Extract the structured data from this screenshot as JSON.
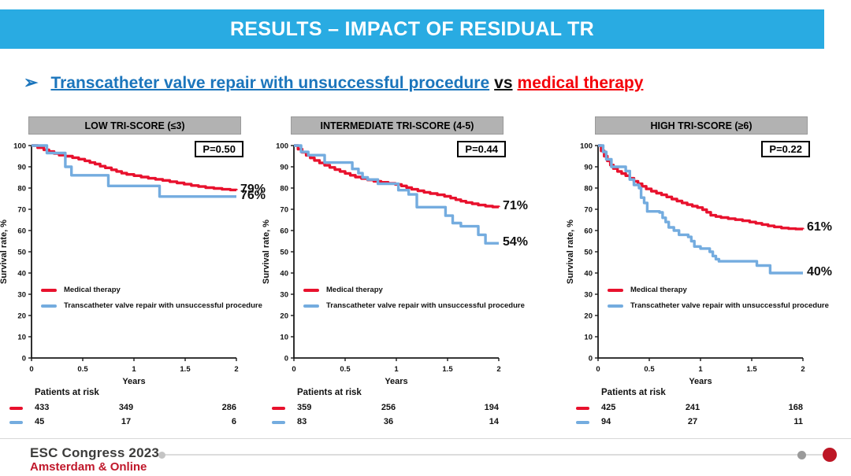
{
  "header": {
    "title": "RESULTS – IMPACT OF RESIDUAL TR"
  },
  "bullet": {
    "arrow": "➢",
    "blue_text": "Transcatheter valve repair with unsuccessful procedure",
    "connector": "vs",
    "red_text": "medical therapy"
  },
  "legend": {
    "medical": "Medical therapy",
    "repair": "Transcatheter valve repair with unsuccessful procedure"
  },
  "axes": {
    "ylabel": "Survival rate, %",
    "xlabel": "Years",
    "ylim": [
      0,
      100
    ],
    "xlim": [
      0,
      2
    ],
    "yticks": [
      0,
      10,
      20,
      30,
      40,
      50,
      60,
      70,
      80,
      90,
      100
    ],
    "xticks": [
      0,
      0.5,
      1,
      1.5,
      2
    ]
  },
  "risk_label": "Patients at risk",
  "colors": {
    "medical": "#e8112d",
    "repair": "#74acdf",
    "header_bg": "#29abe2",
    "accent_red": "#c0182b"
  },
  "chart_data": [
    {
      "type": "line",
      "title": "LOW TRI-SCORE (≤3)",
      "pvalue": "P=0.50",
      "end_labels": [
        "79%",
        "76%"
      ],
      "series": [
        {
          "name": "Medical therapy",
          "key": "medical",
          "points": [
            [
              0,
              100
            ],
            [
              0.06,
              99
            ],
            [
              0.12,
              98
            ],
            [
              0.17,
              97.2
            ],
            [
              0.22,
              96.3
            ],
            [
              0.27,
              95.5
            ],
            [
              0.33,
              95
            ],
            [
              0.4,
              94.3
            ],
            [
              0.46,
              93.6
            ],
            [
              0.52,
              92.8
            ],
            [
              0.57,
              92
            ],
            [
              0.62,
              91.3
            ],
            [
              0.67,
              90.3
            ],
            [
              0.72,
              89.5
            ],
            [
              0.78,
              88.6
            ],
            [
              0.83,
              87.8
            ],
            [
              0.88,
              87
            ],
            [
              0.93,
              86.4
            ],
            [
              1.0,
              85.8
            ],
            [
              1.07,
              85.2
            ],
            [
              1.14,
              84.6
            ],
            [
              1.21,
              84.1
            ],
            [
              1.28,
              83.6
            ],
            [
              1.35,
              83
            ],
            [
              1.42,
              82.4
            ],
            [
              1.49,
              81.8
            ],
            [
              1.56,
              81.2
            ],
            [
              1.63,
              80.7
            ],
            [
              1.7,
              80.2
            ],
            [
              1.78,
              79.8
            ],
            [
              1.86,
              79.4
            ],
            [
              1.94,
              79.1
            ],
            [
              2,
              79
            ]
          ]
        },
        {
          "name": "Transcatheter valve repair with unsuccessful procedure",
          "key": "repair",
          "points": [
            [
              0,
              100
            ],
            [
              0.15,
              96.5
            ],
            [
              0.33,
              90
            ],
            [
              0.39,
              86
            ],
            [
              0.75,
              81
            ],
            [
              1.25,
              76
            ],
            [
              2,
              76
            ]
          ]
        }
      ],
      "risk": [
        [
          "433",
          "349",
          "286"
        ],
        [
          "45",
          "17",
          "6"
        ]
      ]
    },
    {
      "type": "line",
      "title": "INTERMEDIATE TRI-SCORE (4-5)",
      "pvalue": "P=0.44",
      "end_labels": [
        "71%",
        "54%"
      ],
      "series": [
        {
          "name": "Medical therapy",
          "key": "medical",
          "points": [
            [
              0,
              100
            ],
            [
              0.04,
              98.3
            ],
            [
              0.08,
              96.8
            ],
            [
              0.12,
              95.4
            ],
            [
              0.16,
              94.2
            ],
            [
              0.2,
              93
            ],
            [
              0.25,
              91.8
            ],
            [
              0.3,
              90.7
            ],
            [
              0.35,
              89.7
            ],
            [
              0.4,
              88.7
            ],
            [
              0.45,
              87.8
            ],
            [
              0.5,
              86.9
            ],
            [
              0.55,
              86
            ],
            [
              0.6,
              85.2
            ],
            [
              0.66,
              84.5
            ],
            [
              0.72,
              83.8
            ],
            [
              0.78,
              83.2
            ],
            [
              0.85,
              82.7
            ],
            [
              0.92,
              82.2
            ],
            [
              0.99,
              81.7
            ],
            [
              1.05,
              81
            ],
            [
              1.1,
              80.2
            ],
            [
              1.15,
              79.4
            ],
            [
              1.21,
              78.7
            ],
            [
              1.27,
              78
            ],
            [
              1.33,
              77.4
            ],
            [
              1.4,
              76.8
            ],
            [
              1.47,
              76.1
            ],
            [
              1.53,
              75.3
            ],
            [
              1.58,
              74.5
            ],
            [
              1.63,
              73.8
            ],
            [
              1.68,
              73.2
            ],
            [
              1.74,
              72.6
            ],
            [
              1.8,
              72
            ],
            [
              1.87,
              71.5
            ],
            [
              1.94,
              71.1
            ],
            [
              2,
              71
            ]
          ]
        },
        {
          "name": "Transcatheter valve repair with unsuccessful procedure",
          "key": "repair",
          "points": [
            [
              0,
              100
            ],
            [
              0.07,
              97
            ],
            [
              0.14,
              95.5
            ],
            [
              0.3,
              92
            ],
            [
              0.57,
              89
            ],
            [
              0.63,
              87
            ],
            [
              0.67,
              85
            ],
            [
              0.72,
              84
            ],
            [
              0.82,
              82
            ],
            [
              1.02,
              79
            ],
            [
              1.12,
              77
            ],
            [
              1.2,
              71
            ],
            [
              1.48,
              67
            ],
            [
              1.55,
              63.5
            ],
            [
              1.63,
              62
            ],
            [
              1.8,
              58
            ],
            [
              1.87,
              54
            ],
            [
              2,
              54
            ]
          ]
        }
      ],
      "risk": [
        [
          "359",
          "256",
          "194"
        ],
        [
          "83",
          "36",
          "14"
        ]
      ]
    },
    {
      "type": "line",
      "title": "HIGH TRI-SCORE (≥6)",
      "pvalue": "P=0.22",
      "end_labels": [
        "61%",
        "40%"
      ],
      "series": [
        {
          "name": "Medical therapy",
          "key": "medical",
          "points": [
            [
              0,
              100
            ],
            [
              0.03,
              97.5
            ],
            [
              0.06,
              95
            ],
            [
              0.09,
              92.8
            ],
            [
              0.12,
              90.8
            ],
            [
              0.15,
              89.2
            ],
            [
              0.19,
              87.8
            ],
            [
              0.23,
              86.8
            ],
            [
              0.27,
              85.8
            ],
            [
              0.31,
              84.6
            ],
            [
              0.35,
              83.2
            ],
            [
              0.39,
              82
            ],
            [
              0.43,
              80.8
            ],
            [
              0.47,
              79.6
            ],
            [
              0.52,
              78.5
            ],
            [
              0.57,
              77.6
            ],
            [
              0.62,
              76.8
            ],
            [
              0.67,
              75.8
            ],
            [
              0.72,
              74.8
            ],
            [
              0.77,
              73.9
            ],
            [
              0.82,
              73
            ],
            [
              0.87,
              72.2
            ],
            [
              0.92,
              71.5
            ],
            [
              0.97,
              70.8
            ],
            [
              1.02,
              69.8
            ],
            [
              1.06,
              68.6
            ],
            [
              1.1,
              67.2
            ],
            [
              1.15,
              66.6
            ],
            [
              1.2,
              66.1
            ],
            [
              1.27,
              65.6
            ],
            [
              1.34,
              65.1
            ],
            [
              1.41,
              64.6
            ],
            [
              1.48,
              64
            ],
            [
              1.54,
              63.4
            ],
            [
              1.6,
              62.8
            ],
            [
              1.66,
              62.2
            ],
            [
              1.72,
              61.7
            ],
            [
              1.79,
              61.2
            ],
            [
              1.86,
              60.9
            ],
            [
              1.93,
              60.7
            ],
            [
              2,
              60.6
            ]
          ]
        },
        {
          "name": "Transcatheter valve repair with unsuccessful procedure",
          "key": "repair",
          "points": [
            [
              0,
              100
            ],
            [
              0.05,
              97
            ],
            [
              0.08,
              93.5
            ],
            [
              0.13,
              90
            ],
            [
              0.27,
              88
            ],
            [
              0.31,
              84
            ],
            [
              0.35,
              81.5
            ],
            [
              0.4,
              80
            ],
            [
              0.42,
              75.5
            ],
            [
              0.45,
              73
            ],
            [
              0.48,
              69
            ],
            [
              0.6,
              68.5
            ],
            [
              0.63,
              66
            ],
            [
              0.66,
              64
            ],
            [
              0.69,
              61.5
            ],
            [
              0.74,
              60
            ],
            [
              0.79,
              58
            ],
            [
              0.88,
              57
            ],
            [
              0.91,
              55
            ],
            [
              0.94,
              52.5
            ],
            [
              1.0,
              51.5
            ],
            [
              1.09,
              50
            ],
            [
              1.12,
              48
            ],
            [
              1.15,
              46.5
            ],
            [
              1.18,
              45.5
            ],
            [
              1.55,
              43.5
            ],
            [
              1.68,
              40
            ],
            [
              2,
              40
            ]
          ]
        }
      ],
      "risk": [
        [
          "425",
          "241",
          "168"
        ],
        [
          "94",
          "27",
          "11"
        ]
      ]
    }
  ],
  "footer": {
    "line1": "ESC Congress 2023",
    "line2": "Amsterdam & Online"
  }
}
